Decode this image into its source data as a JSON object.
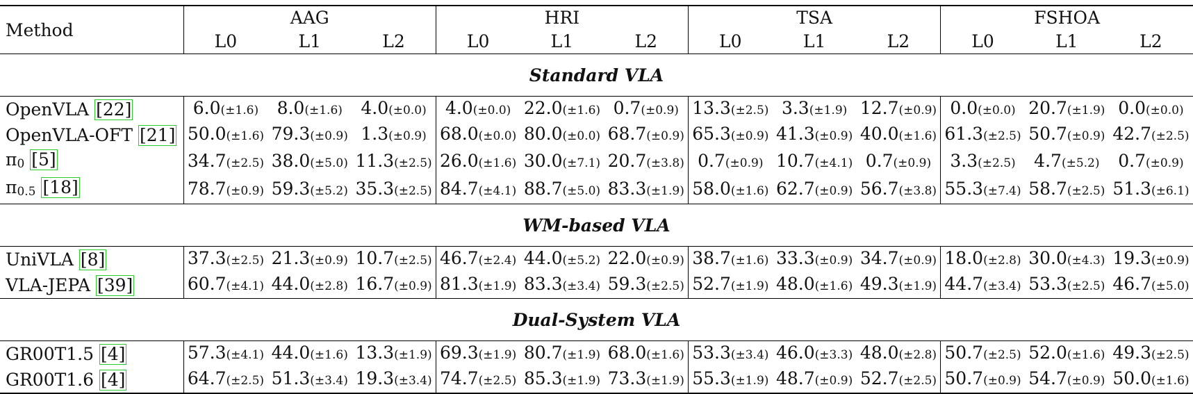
{
  "table": {
    "method_header": "Method",
    "groups": [
      {
        "name": "AAG",
        "levels": [
          "L0",
          "L1",
          "L2"
        ]
      },
      {
        "name": "HRI",
        "levels": [
          "L0",
          "L1",
          "L2"
        ]
      },
      {
        "name": "TSA",
        "levels": [
          "L0",
          "L1",
          "L2"
        ]
      },
      {
        "name": "FSHOA",
        "levels": [
          "L0",
          "L1",
          "L2"
        ]
      }
    ],
    "sections": [
      {
        "title": "Standard VLA",
        "rows": [
          {
            "method": "OpenVLA",
            "ref": "22",
            "cells": [
              {
                "mean": "6.0",
                "std": "(±1.6)"
              },
              {
                "mean": "8.0",
                "std": "(±1.6)"
              },
              {
                "mean": "4.0",
                "std": "(±0.0)"
              },
              {
                "mean": "4.0",
                "std": "(±0.0)"
              },
              {
                "mean": "22.0",
                "std": "(±1.6)"
              },
              {
                "mean": "0.7",
                "std": "(±0.9)"
              },
              {
                "mean": "13.3",
                "std": "(±2.5)"
              },
              {
                "mean": "3.3",
                "std": "(±1.9)"
              },
              {
                "mean": "12.7",
                "std": "(±0.9)"
              },
              {
                "mean": "0.0",
                "std": "(±0.0)"
              },
              {
                "mean": "20.7",
                "std": "(±1.9)"
              },
              {
                "mean": "0.0",
                "std": "(±0.0)"
              }
            ]
          },
          {
            "method": "OpenVLA-OFT",
            "ref": "21",
            "cells": [
              {
                "mean": "50.0",
                "std": "(±1.6)"
              },
              {
                "mean": "79.3",
                "std": "(±0.9)"
              },
              {
                "mean": "1.3",
                "std": "(±0.9)"
              },
              {
                "mean": "68.0",
                "std": "(±0.0)"
              },
              {
                "mean": "80.0",
                "std": "(±0.0)"
              },
              {
                "mean": "68.7",
                "std": "(±0.9)"
              },
              {
                "mean": "65.3",
                "std": "(±0.9)"
              },
              {
                "mean": "41.3",
                "std": "(±0.9)"
              },
              {
                "mean": "40.0",
                "std": "(±1.6)"
              },
              {
                "mean": "61.3",
                "std": "(±2.5)"
              },
              {
                "mean": "50.7",
                "std": "(±0.9)"
              },
              {
                "mean": "42.7",
                "std": "(±2.5)"
              }
            ]
          },
          {
            "method": "π",
            "sub": "0",
            "ref": "5",
            "cells": [
              {
                "mean": "34.7",
                "std": "(±2.5)"
              },
              {
                "mean": "38.0",
                "std": "(±5.0)"
              },
              {
                "mean": "11.3",
                "std": "(±2.5)"
              },
              {
                "mean": "26.0",
                "std": "(±1.6)"
              },
              {
                "mean": "30.0",
                "std": "(±7.1)"
              },
              {
                "mean": "20.7",
                "std": "(±3.8)"
              },
              {
                "mean": "0.7",
                "std": "(±0.9)"
              },
              {
                "mean": "10.7",
                "std": "(±4.1)"
              },
              {
                "mean": "0.7",
                "std": "(±0.9)"
              },
              {
                "mean": "3.3",
                "std": "(±2.5)"
              },
              {
                "mean": "4.7",
                "std": "(±5.2)"
              },
              {
                "mean": "0.7",
                "std": "(±0.9)"
              }
            ]
          },
          {
            "method": "π",
            "sub": "0.5",
            "ref": "18",
            "cells": [
              {
                "mean": "78.7",
                "std": "(±0.9)"
              },
              {
                "mean": "59.3",
                "std": "(±5.2)"
              },
              {
                "mean": "35.3",
                "std": "(±2.5)"
              },
              {
                "mean": "84.7",
                "std": "(±4.1)"
              },
              {
                "mean": "88.7",
                "std": "(±5.0)"
              },
              {
                "mean": "83.3",
                "std": "(±1.9)"
              },
              {
                "mean": "58.0",
                "std": "(±1.6)"
              },
              {
                "mean": "62.7",
                "std": "(±0.9)"
              },
              {
                "mean": "56.7",
                "std": "(±3.8)"
              },
              {
                "mean": "55.3",
                "std": "(±7.4)"
              },
              {
                "mean": "58.7",
                "std": "(±2.5)"
              },
              {
                "mean": "51.3",
                "std": "(±6.1)"
              }
            ]
          }
        ]
      },
      {
        "title": "WM-based VLA",
        "rows": [
          {
            "method": "UniVLA",
            "ref": "8",
            "cells": [
              {
                "mean": "37.3",
                "std": "(±2.5)"
              },
              {
                "mean": "21.3",
                "std": "(±0.9)"
              },
              {
                "mean": "10.7",
                "std": "(±2.5)"
              },
              {
                "mean": "46.7",
                "std": "(±2.4)"
              },
              {
                "mean": "44.0",
                "std": "(±5.2)"
              },
              {
                "mean": "22.0",
                "std": "(±0.9)"
              },
              {
                "mean": "38.7",
                "std": "(±1.6)"
              },
              {
                "mean": "33.3",
                "std": "(±0.9)"
              },
              {
                "mean": "34.7",
                "std": "(±0.9)"
              },
              {
                "mean": "18.0",
                "std": "(±2.8)"
              },
              {
                "mean": "30.0",
                "std": "(±4.3)"
              },
              {
                "mean": "19.3",
                "std": "(±0.9)"
              }
            ]
          },
          {
            "method": "VLA-JEPA",
            "ref": "39",
            "cells": [
              {
                "mean": "60.7",
                "std": "(±4.1)"
              },
              {
                "mean": "44.0",
                "std": "(±2.8)"
              },
              {
                "mean": "16.7",
                "std": "(±0.9)"
              },
              {
                "mean": "81.3",
                "std": "(±1.9)"
              },
              {
                "mean": "83.3",
                "std": "(±3.4)"
              },
              {
                "mean": "59.3",
                "std": "(±2.5)"
              },
              {
                "mean": "52.7",
                "std": "(±1.9)"
              },
              {
                "mean": "48.0",
                "std": "(±1.6)"
              },
              {
                "mean": "49.3",
                "std": "(±1.9)"
              },
              {
                "mean": "44.7",
                "std": "(±3.4)"
              },
              {
                "mean": "53.3",
                "std": "(±2.5)"
              },
              {
                "mean": "46.7",
                "std": "(±5.0)"
              }
            ]
          }
        ]
      },
      {
        "title": "Dual-System VLA",
        "rows": [
          {
            "method": "GR00T1.5",
            "ref": "4",
            "cells": [
              {
                "mean": "57.3",
                "std": "(±4.1)"
              },
              {
                "mean": "44.0",
                "std": "(±1.6)"
              },
              {
                "mean": "13.3",
                "std": "(±1.9)"
              },
              {
                "mean": "69.3",
                "std": "(±1.9)"
              },
              {
                "mean": "80.7",
                "std": "(±1.9)"
              },
              {
                "mean": "68.0",
                "std": "(±1.6)"
              },
              {
                "mean": "53.3",
                "std": "(±3.4)"
              },
              {
                "mean": "46.0",
                "std": "(±3.3)"
              },
              {
                "mean": "48.0",
                "std": "(±2.8)"
              },
              {
                "mean": "50.7",
                "std": "(±2.5)"
              },
              {
                "mean": "52.0",
                "std": "(±1.6)"
              },
              {
                "mean": "49.3",
                "std": "(±2.5)"
              }
            ]
          },
          {
            "method": "GR00T1.6",
            "ref": "4",
            "cells": [
              {
                "mean": "64.7",
                "std": "(±2.5)"
              },
              {
                "mean": "51.3",
                "std": "(±3.4)"
              },
              {
                "mean": "19.3",
                "std": "(±3.4)"
              },
              {
                "mean": "74.7",
                "std": "(±2.5)"
              },
              {
                "mean": "85.3",
                "std": "(±1.9)"
              },
              {
                "mean": "73.3",
                "std": "(±1.9)"
              },
              {
                "mean": "55.3",
                "std": "(±1.9)"
              },
              {
                "mean": "48.7",
                "std": "(±0.9)"
              },
              {
                "mean": "52.7",
                "std": "(±2.5)"
              },
              {
                "mean": "50.7",
                "std": "(±0.9)"
              },
              {
                "mean": "54.7",
                "std": "(±0.9)"
              },
              {
                "mean": "50.0",
                "std": "(±1.6)"
              }
            ]
          }
        ]
      }
    ],
    "colors": {
      "citation_box": "#29cc29",
      "rule": "#000000",
      "text": "#111111"
    }
  }
}
